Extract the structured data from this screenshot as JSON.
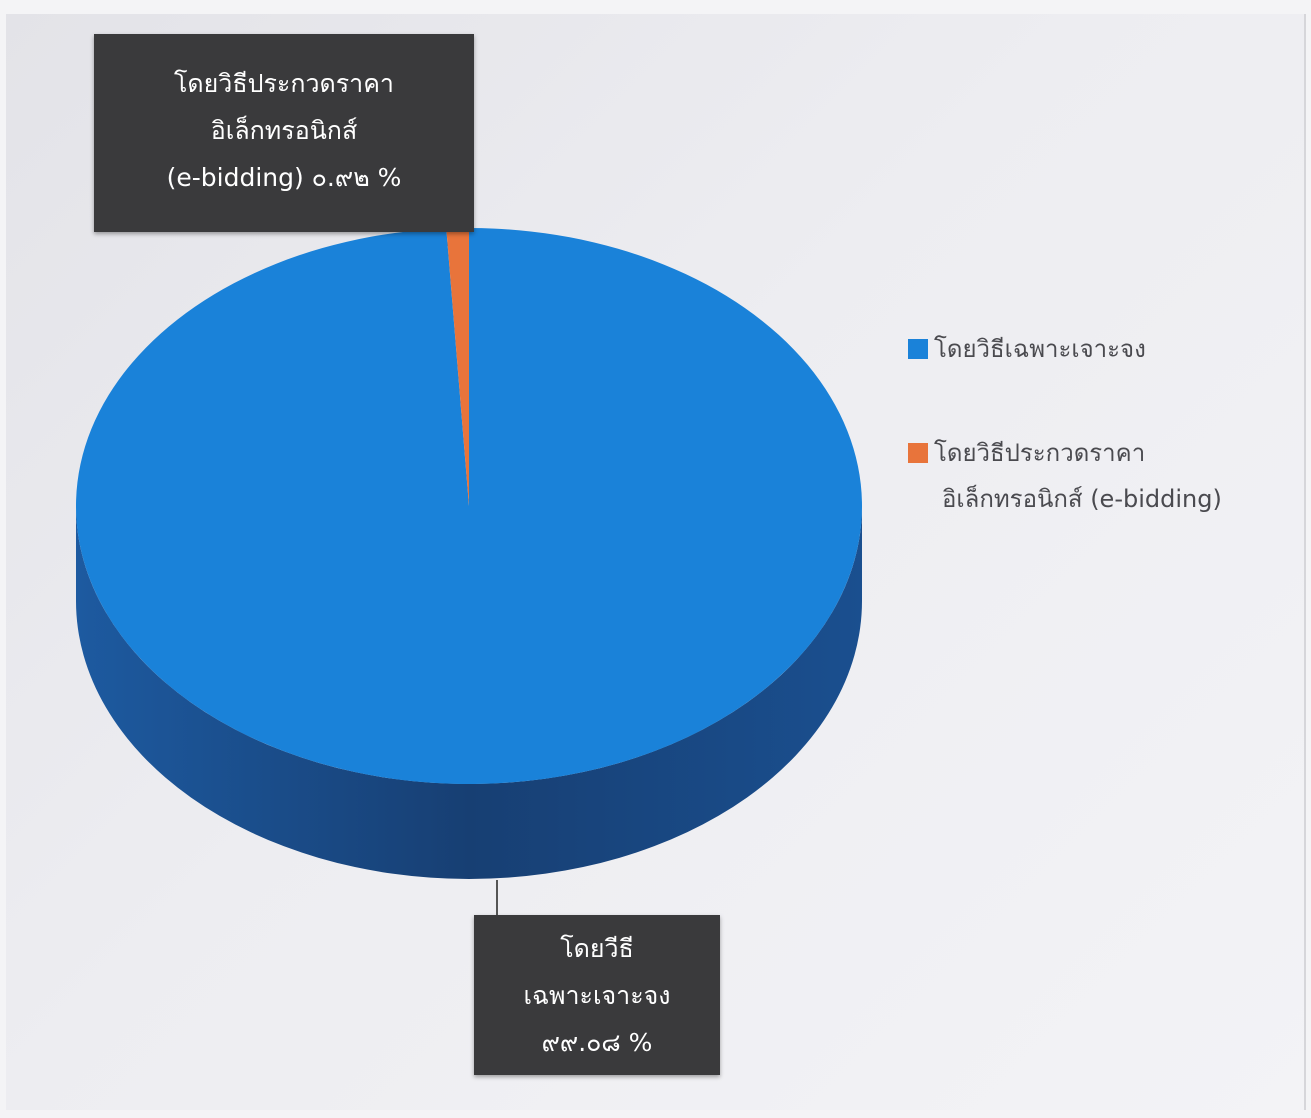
{
  "colors": {
    "blue": "#1a82d9",
    "blue_side": "#1c4e8e",
    "orange": "#e8743b"
  },
  "callouts": {
    "orange": {
      "line1": "โดยวิธีประกวดราคา",
      "line2": "อิเล็กทรอนิกส์",
      "line3": "(e-bidding) ๐.๙๒ %"
    },
    "blue": {
      "line1": "โดยวีธี",
      "line2": "เฉพาะเจาะจง",
      "line3": "๙๙.๐๘ %"
    }
  },
  "legend": [
    {
      "line1": "โดยวิธีเฉพาะเจาะจง",
      "line2": ""
    },
    {
      "line1": "โดยวิธีประกวดราคา",
      "line2": "อิเล็กทรอนิกส์ (e-bidding)"
    }
  ],
  "chart_data": {
    "type": "pie",
    "style": "3d",
    "legend_position": "right",
    "slices": [
      {
        "label": "โดยวิธีเฉพาะเจาะจง",
        "value": 99.08,
        "color": "#1a82d9"
      },
      {
        "label": "โดยวิธีประกวดราคา อิเล็กทรอนิกส์ (e-bidding)",
        "value": 0.92,
        "color": "#e8743b"
      }
    ]
  }
}
